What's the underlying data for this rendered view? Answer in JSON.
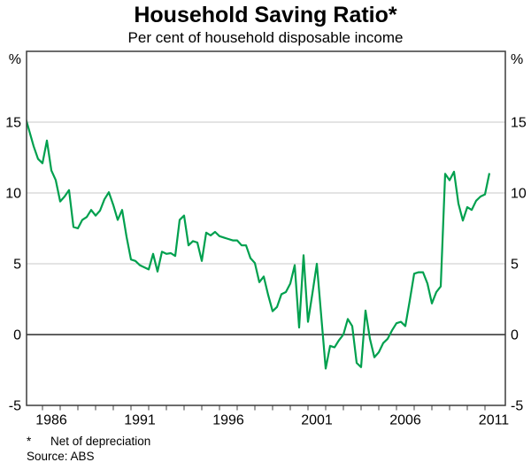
{
  "chart_data": {
    "type": "line",
    "title": "Household Saving Ratio*",
    "subtitle": "Per cent of household disposable income",
    "footnote_marker": "*",
    "footnote_text": "Net of depreciation",
    "source": "Source: ABS",
    "unit_label": "%",
    "legend": "none",
    "grid": "horizontal",
    "x_axis": {
      "min_year": 1985.0,
      "max_year": 2012.05,
      "tick_first_year": 1986,
      "tick_last_year": 2011,
      "tick_interval_years": 1,
      "labels": [
        "1986",
        "1991",
        "1996",
        "2001",
        "2006",
        "2011"
      ],
      "label_years": [
        1986,
        1991,
        1996,
        2001,
        2006,
        2011
      ],
      "label_center_offset_years": 0.5
    },
    "y_axis": {
      "min": -5,
      "max": 20,
      "tick_labels": [
        "-5",
        "0",
        "5",
        "10",
        "15"
      ],
      "tick_values": [
        -5,
        0,
        5,
        10,
        15
      ],
      "gridline_values": [
        5,
        10,
        15
      ],
      "zero_line_value": 0,
      "unit": "%",
      "sides": [
        "left",
        "right"
      ]
    },
    "series": [
      {
        "name": "Household saving ratio (net of depreciation)",
        "color": "#00a04e",
        "frequency": "quarterly",
        "start_year": 1985,
        "start_quarter": 1,
        "end_year": 2011,
        "end_quarter": 2,
        "values": [
          15.5,
          14.4,
          13.3,
          12.4,
          12.1,
          13.7,
          11.6,
          10.9,
          9.4,
          9.75,
          10.2,
          7.6,
          7.5,
          8.1,
          8.3,
          8.8,
          8.4,
          8.75,
          9.55,
          10.05,
          9.15,
          8.1,
          8.8,
          6.9,
          5.3,
          5.2,
          4.9,
          4.75,
          4.6,
          5.7,
          4.45,
          5.85,
          5.7,
          5.75,
          5.55,
          8.1,
          8.4,
          6.3,
          6.6,
          6.5,
          5.2,
          7.2,
          7.0,
          7.25,
          6.95,
          6.85,
          6.75,
          6.65,
          6.65,
          6.3,
          6.3,
          5.4,
          5.05,
          3.7,
          4.1,
          2.8,
          1.65,
          1.95,
          2.85,
          3.0,
          3.6,
          4.9,
          0.5,
          5.6,
          0.9,
          2.9,
          5.0,
          1.3,
          -2.4,
          -0.8,
          -0.9,
          -0.4,
          0.0,
          1.1,
          0.6,
          -2.0,
          -2.3,
          1.7,
          -0.3,
          -1.6,
          -1.25,
          -0.6,
          -0.3,
          0.3,
          0.8,
          0.9,
          0.6,
          2.4,
          4.3,
          4.4,
          4.4,
          3.6,
          2.2,
          3.0,
          3.4,
          11.35,
          10.9,
          11.5,
          9.25,
          8.05,
          9.0,
          8.8,
          9.45,
          9.75,
          9.9,
          11.4
        ]
      }
    ],
    "colors": {
      "line": "#00a04e",
      "gridline": "#c8c8c8",
      "zero_line": "#000000",
      "border": "#3c3c3c",
      "text": "#000000"
    }
  }
}
